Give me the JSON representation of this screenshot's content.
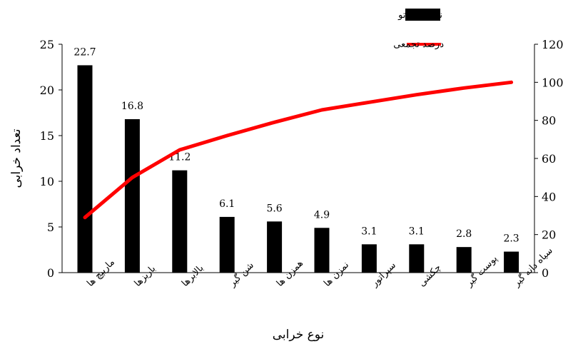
{
  "chart_data": {
    "type": "bar",
    "categories": [
      "ماریپچ ها",
      "باریزها",
      "بالابرها",
      "شن گیر",
      "همزن ها",
      "نمزن ها",
      "سپراتور",
      "چکشی",
      "پوست گیر",
      "سیاه دانه گیر"
    ],
    "series": [
      {
        "name": "نمودار پارتو",
        "type": "bar",
        "axis": "left",
        "color": "#000000",
        "values": [
          22.7,
          16.8,
          11.2,
          6.1,
          5.6,
          4.9,
          3.1,
          3.1,
          2.8,
          2.3
        ]
      },
      {
        "name": "درصد تجمعی",
        "type": "line",
        "axis": "right",
        "color": "#ff0000",
        "values": [
          29,
          50,
          64.5,
          72,
          79,
          85.5,
          89.5,
          93.5,
          97,
          100
        ]
      }
    ],
    "data_labels": [
      "22.7",
      "16.8",
      "11.2",
      "6.1",
      "5.6",
      "4.9",
      "3.1",
      "3.1",
      "2.8",
      "2.3"
    ],
    "xlabel": "نوع خرابی",
    "ylabel": "تعداد خرابی",
    "ylim": [
      0,
      25
    ],
    "y_ticks": [
      "0",
      "5",
      "10",
      "15",
      "20",
      "25"
    ],
    "y2lim": [
      0,
      120
    ],
    "y2_ticks": [
      "0",
      "20",
      "40",
      "60",
      "80",
      "100",
      "120"
    ],
    "grid": false,
    "legend_position": "top-right"
  }
}
